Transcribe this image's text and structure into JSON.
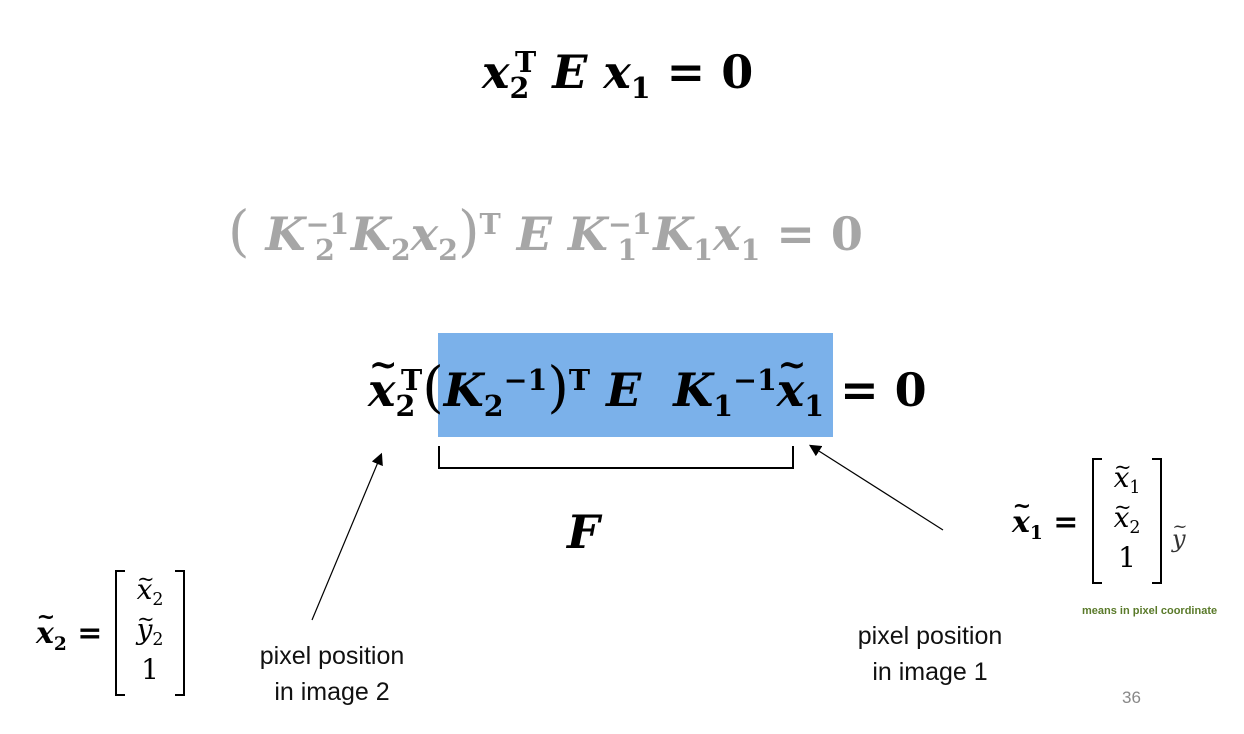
{
  "equations": {
    "eq1": {
      "x": "x",
      "s2": "2",
      "T": "T",
      "E": "E",
      "s1": "1",
      "eq": "= 0"
    },
    "eq2": {
      "K": "K",
      "inv": "−1",
      "s2": "2",
      "s1": "1",
      "x": "x",
      "T": "T",
      "E": "E",
      "eq": "= 0",
      "lp": "(",
      "rp": ")"
    },
    "eq3": {
      "x": "x",
      "s2": "2",
      "s1": "1",
      "T": "T",
      "K": "K",
      "inv": "−1",
      "E": "E",
      "eq": "= 0",
      "lp": "(",
      "rp": ")"
    }
  },
  "f_label": "F",
  "notes": {
    "image2": [
      "pixel position",
      "in image 2"
    ],
    "image1": [
      "pixel position",
      "in image 1"
    ],
    "pixel_coordinate": "means in pixel coordinate"
  },
  "vectors": {
    "x2": {
      "lhs_sub": "2",
      "eq": "=",
      "rows": [
        "x",
        "y",
        "1"
      ],
      "subs": [
        "2",
        "2",
        ""
      ]
    },
    "x1": {
      "lhs_sub": "1",
      "eq": "=",
      "rows": [
        "x",
        "x",
        "1"
      ],
      "subs": [
        "1",
        "2",
        ""
      ],
      "trail": "y"
    }
  },
  "page_number": "36",
  "colors": {
    "highlight": "#7bb1ea",
    "faded": "#a6a6a6",
    "note_green": "#5a7a2a"
  }
}
